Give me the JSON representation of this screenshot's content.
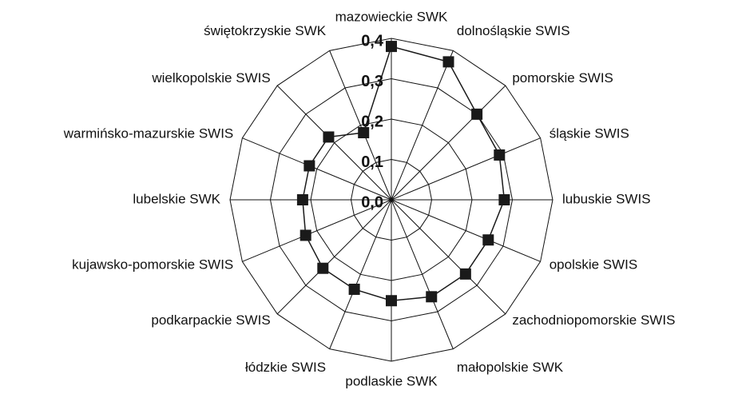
{
  "chart_data": {
    "type": "radar",
    "categories": [
      "mazowieckie SWK",
      "dolnośląskie SWIS",
      "pomorskie SWIS",
      "śląskie SWIS",
      "lubuskie SWIS",
      "opolskie SWIS",
      "zachodniopomorskie SWIS",
      "małopolskie SWK",
      "podlaskie SWK",
      "łódzkie SWIS",
      "podkarpackie SWIS",
      "kujawsko-pomorskie SWIS",
      "lubelskie SWK",
      "warmińsko-mazurskie SWIS",
      "wielkopolskie SWIS",
      "świętokrzyskie SWK"
    ],
    "values": [
      0.38,
      0.37,
      0.3,
      0.29,
      0.28,
      0.26,
      0.26,
      0.26,
      0.25,
      0.24,
      0.24,
      0.23,
      0.22,
      0.22,
      0.22,
      0.18
    ],
    "color": "#1a1a1a",
    "ylim": [
      0,
      0.4
    ],
    "yticks": [
      {
        "value": 0,
        "label": "0,0"
      },
      {
        "value": 0.1,
        "label": "0,1"
      },
      {
        "value": 0.2,
        "label": "0,2"
      },
      {
        "value": 0.3,
        "label": "0,3"
      },
      {
        "value": 0.4,
        "label": "0,4"
      }
    ],
    "grid": true
  }
}
